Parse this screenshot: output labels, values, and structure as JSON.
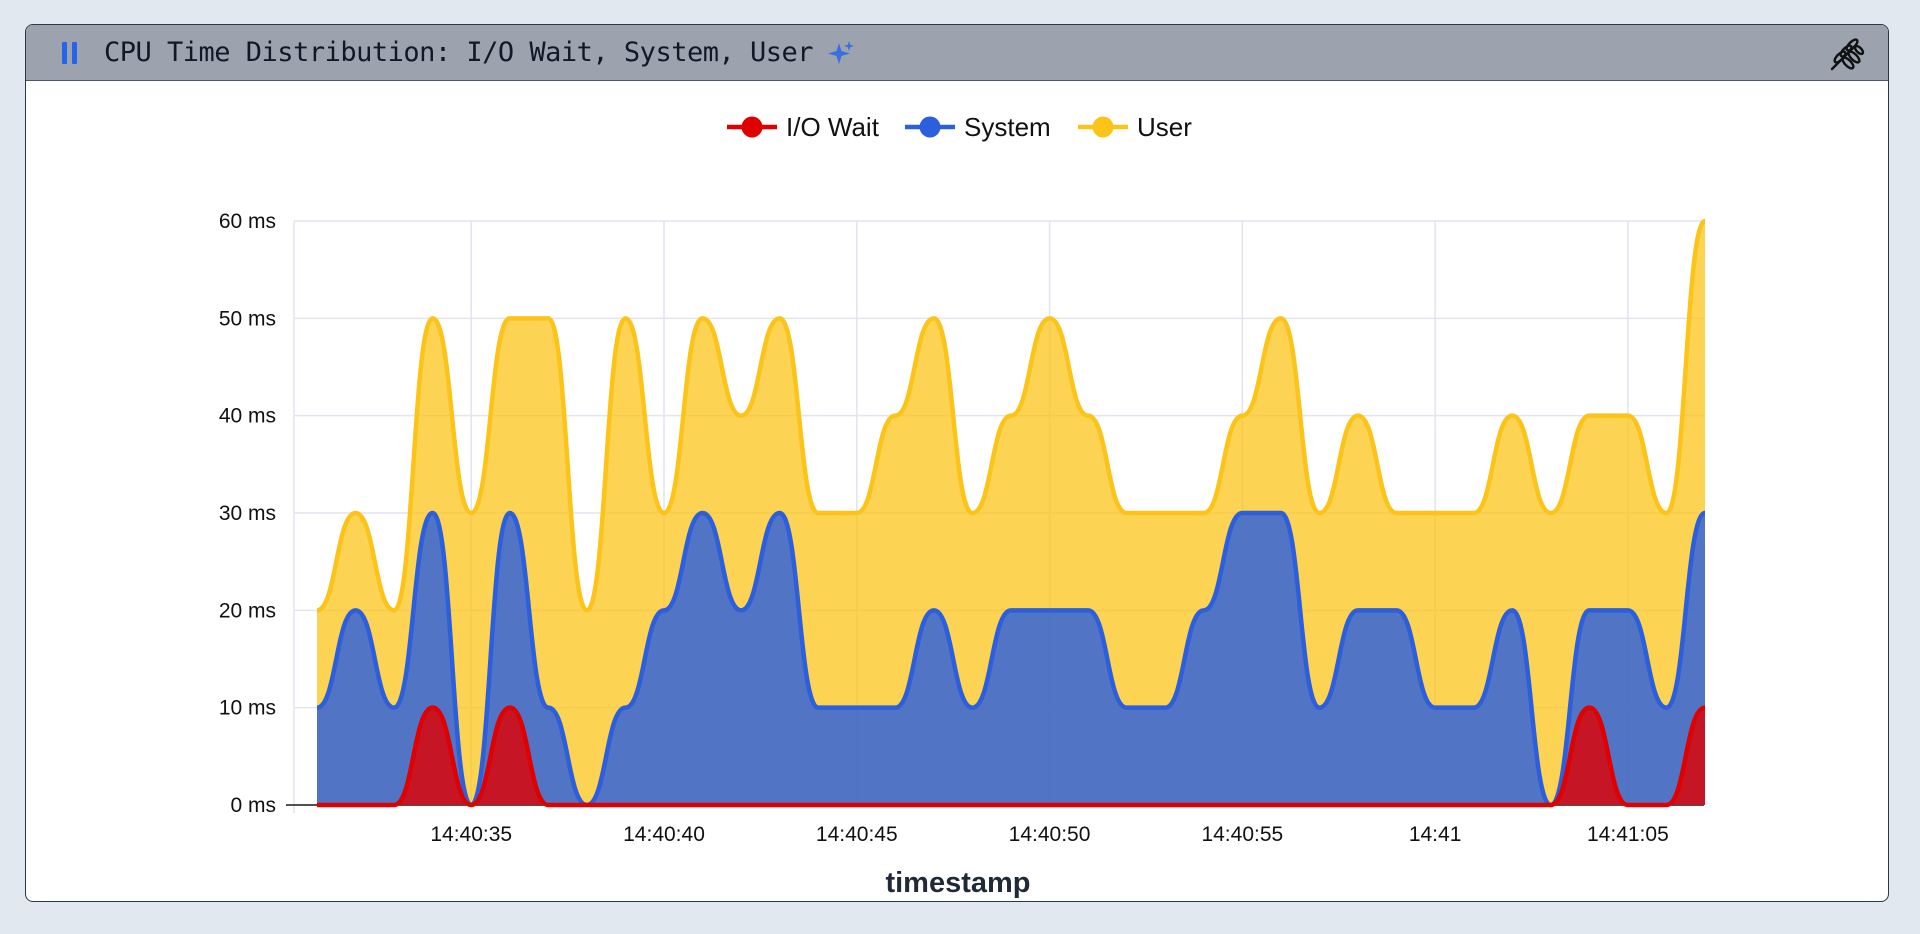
{
  "panel": {
    "title": "CPU Time Distribution: I/O Wait, System, User"
  },
  "icons": {
    "pause": "pause-icon",
    "sparkle": "sparkle-icon",
    "options": "wheat-icon"
  },
  "colors": {
    "io_wait": "#e00000",
    "system": "#2b5fde",
    "user": "#fcc419",
    "grid": "#e2e4ef"
  },
  "chart_data": {
    "type": "area",
    "stacked": true,
    "title": "CPU Time Distribution: I/O Wait, System, User",
    "xlabel": "timestamp",
    "ylabel": "",
    "ylim": [
      0,
      60
    ],
    "y_ticks": [
      "0 ms",
      "10 ms",
      "20 ms",
      "30 ms",
      "40 ms",
      "50 ms",
      "60 ms"
    ],
    "x_ticks": [
      "14:40:35",
      "14:40:40",
      "14:40:45",
      "14:40:50",
      "14:40:55",
      "14:41",
      "14:41:05"
    ],
    "legend_position": "top",
    "grid": true,
    "x": [
      "14:40:31",
      "14:40:32",
      "14:40:33",
      "14:40:34",
      "14:40:35",
      "14:40:36",
      "14:40:37",
      "14:40:38",
      "14:40:39",
      "14:40:40",
      "14:40:41",
      "14:40:42",
      "14:40:43",
      "14:40:44",
      "14:40:45",
      "14:40:46",
      "14:40:47",
      "14:40:48",
      "14:40:49",
      "14:40:50",
      "14:40:51",
      "14:40:52",
      "14:40:53",
      "14:40:54",
      "14:40:55",
      "14:40:56",
      "14:40:57",
      "14:40:58",
      "14:40:59",
      "14:41:00",
      "14:41:01",
      "14:41:02",
      "14:41:03",
      "14:41:04",
      "14:41:05",
      "14:41:06",
      "14:41:07"
    ],
    "series": [
      {
        "name": "I/O Wait",
        "values": [
          0,
          0,
          0,
          10,
          0,
          10,
          0,
          0,
          0,
          0,
          0,
          0,
          0,
          0,
          0,
          0,
          0,
          0,
          0,
          0,
          0,
          0,
          0,
          0,
          0,
          0,
          0,
          0,
          0,
          0,
          0,
          0,
          0,
          10,
          0,
          0,
          10
        ]
      },
      {
        "name": "System",
        "values": [
          10,
          20,
          10,
          30,
          0,
          30,
          10,
          0,
          10,
          20,
          30,
          20,
          30,
          10,
          10,
          10,
          20,
          10,
          20,
          20,
          20,
          10,
          10,
          20,
          30,
          30,
          10,
          20,
          20,
          10,
          10,
          20,
          0,
          20,
          20,
          10,
          30
        ]
      },
      {
        "name": "User",
        "values": [
          20,
          30,
          20,
          50,
          30,
          50,
          50,
          20,
          50,
          30,
          50,
          40,
          50,
          30,
          30,
          40,
          50,
          30,
          40,
          50,
          40,
          30,
          30,
          30,
          40,
          50,
          30,
          40,
          30,
          30,
          30,
          40,
          30,
          40,
          40,
          30,
          60
        ]
      }
    ]
  }
}
